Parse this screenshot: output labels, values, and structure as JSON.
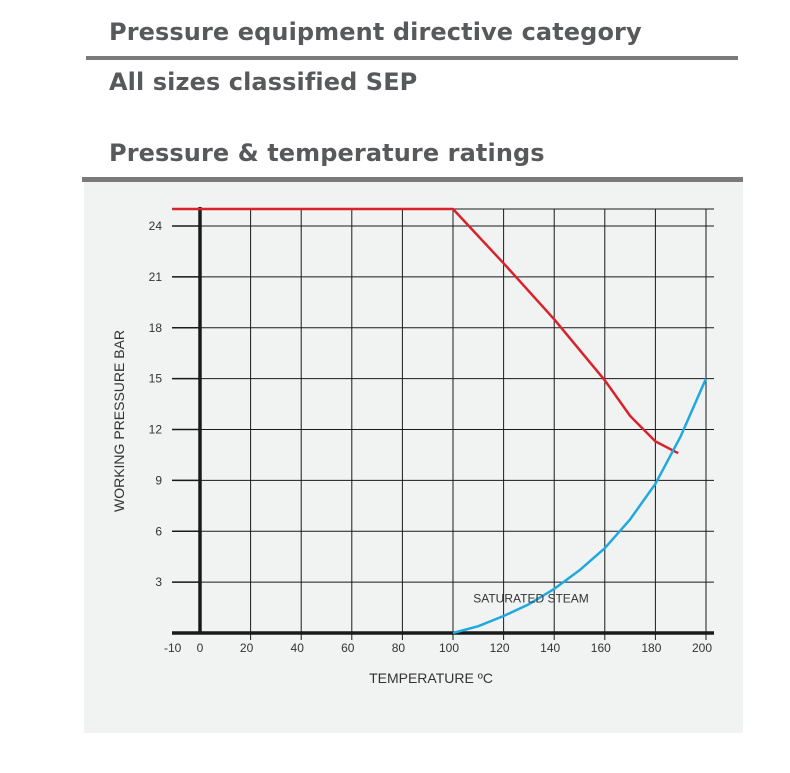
{
  "headings": {
    "category_title": "Pressure equipment directive category",
    "category_value": "All sizes classified SEP",
    "ratings_title": "Pressure & temperature ratings"
  },
  "chart_data": {
    "type": "line",
    "xlabel": "TEMPERATURE ºC",
    "ylabel": "WORKING PRESSURE BAR",
    "xlim": [
      -10,
      200
    ],
    "ylim": [
      0,
      25
    ],
    "x_ticks": [
      -10,
      0,
      20,
      40,
      60,
      80,
      100,
      120,
      140,
      160,
      180,
      200
    ],
    "y_ticks": [
      3,
      6,
      9,
      12,
      15,
      18,
      21,
      24
    ],
    "grid": true,
    "annotations": [
      {
        "text": "SATURATED STEAM",
        "x": 108,
        "y": 1.8
      }
    ],
    "series": [
      {
        "color": "#d7232b",
        "points": [
          [
            -11,
            25
          ],
          [
            100,
            25
          ],
          [
            120,
            21.8
          ],
          [
            140,
            18.5
          ],
          [
            150,
            16.7
          ],
          [
            160,
            14.9
          ],
          [
            170,
            12.8
          ],
          [
            180,
            11.3
          ],
          [
            189,
            10.6
          ]
        ]
      },
      {
        "name": "SATURATED STEAM",
        "color": "#20a9df",
        "points": [
          [
            100,
            0
          ],
          [
            110,
            0.4
          ],
          [
            120,
            1.0
          ],
          [
            130,
            1.7
          ],
          [
            140,
            2.6
          ],
          [
            150,
            3.7
          ],
          [
            160,
            5.0
          ],
          [
            170,
            6.7
          ],
          [
            180,
            8.8
          ],
          [
            190,
            11.6
          ],
          [
            200,
            15.0
          ]
        ]
      }
    ]
  }
}
